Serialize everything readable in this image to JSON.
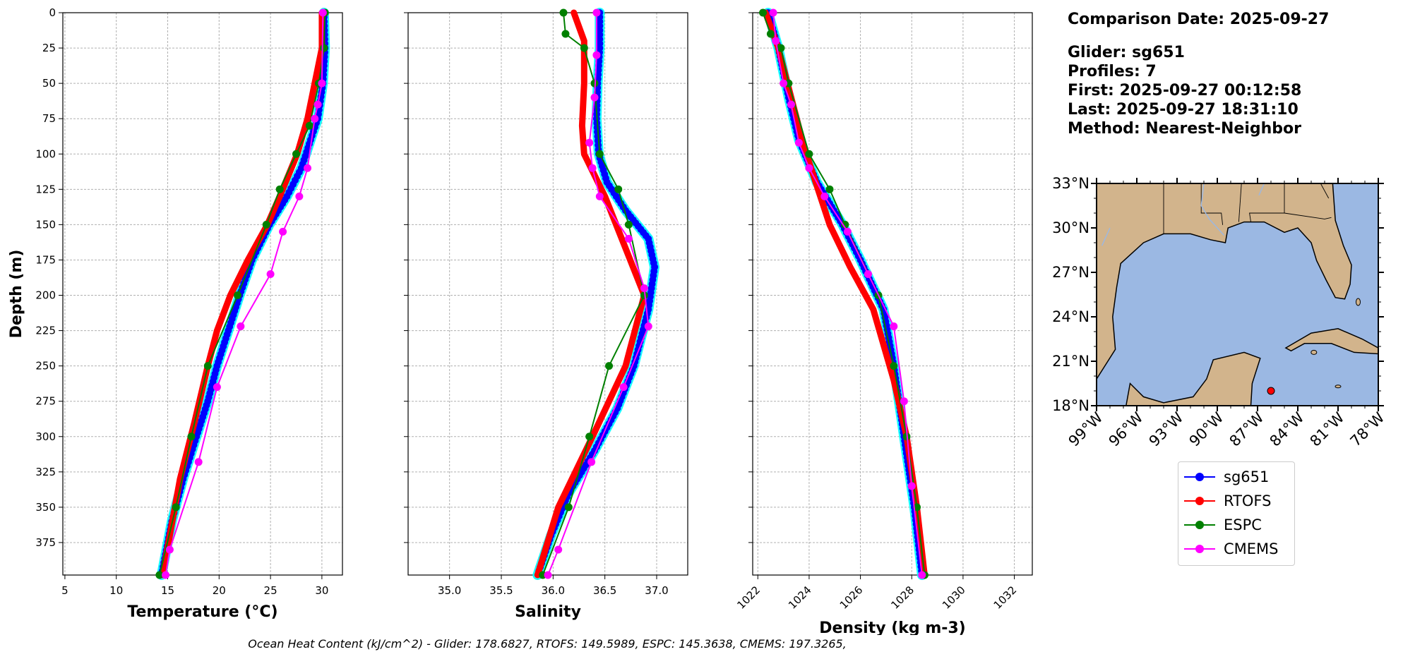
{
  "info": {
    "comparison_date": "Comparison Date: 2025-09-27",
    "glider": "Glider: sg651",
    "profiles": "Profiles: 7",
    "first": "First: 2025-09-27 00:12:58",
    "last": "Last: 2025-09-27 18:31:10",
    "method": "Method: Nearest-Neighbor"
  },
  "footer": "Ocean Heat Content (kJ/cm^2) - Glider: 178.6827,  RTOFS: 149.5989,  ESPC: 145.3638,  CMEMS: 197.3265,",
  "legend": [
    {
      "name": "sg651",
      "color": "#0000ff"
    },
    {
      "name": "RTOFS",
      "color": "#ff0000"
    },
    {
      "name": "ESPC",
      "color": "#008000"
    },
    {
      "name": "CMEMS",
      "color": "#ff00ff"
    }
  ],
  "colors": {
    "glider": "#0000ff",
    "glider_cast": "#00ffff",
    "rtofs": "#ff0000",
    "espc": "#008000",
    "cmems": "#ff00ff",
    "land": "#d2b48c",
    "ocean": "#9bb8e3"
  },
  "chart_data": [
    {
      "type": "line",
      "xlabel": "Temperature (°C)",
      "ylabel": "Depth (m)",
      "xlim": [
        4.8,
        32.0
      ],
      "ylim": [
        398,
        0
      ],
      "xticks": [
        5,
        10,
        15,
        20,
        25,
        30
      ],
      "yticks": [
        0,
        25,
        50,
        75,
        100,
        125,
        150,
        175,
        200,
        225,
        250,
        275,
        300,
        325,
        350,
        375
      ],
      "grid": true,
      "series": [
        {
          "name": "sg651",
          "x": [
            30.2,
            30.3,
            30.1,
            29.6,
            28.9,
            28.0,
            26.6,
            24.9,
            23.2,
            22.0,
            20.9,
            19.8,
            18.9,
            17.8,
            16.5,
            15.4,
            14.4
          ],
          "y": [
            0,
            25,
            50,
            75,
            90,
            110,
            130,
            150,
            175,
            200,
            225,
            250,
            275,
            300,
            330,
            360,
            398
          ]
        },
        {
          "name": "RTOFS",
          "x": [
            30.0,
            30.0,
            29.3,
            28.6,
            27.6,
            25.9,
            24.7,
            22.8,
            21.1,
            19.8,
            18.9,
            17.6,
            16.2,
            14.5
          ],
          "y": [
            0,
            25,
            50,
            75,
            100,
            130,
            150,
            175,
            200,
            225,
            250,
            290,
            330,
            398
          ]
        },
        {
          "name": "ESPC",
          "x": [
            30.3,
            30.2,
            29.7,
            28.8,
            27.5,
            25.9,
            24.6,
            21.8,
            18.9,
            17.3,
            15.8,
            14.2
          ],
          "y": [
            0,
            25,
            50,
            80,
            100,
            125,
            150,
            200,
            250,
            300,
            350,
            398
          ]
        },
        {
          "name": "CMEMS",
          "x": [
            30.1,
            30.0,
            29.6,
            29.3,
            28.6,
            27.8,
            26.2,
            25.0,
            22.1,
            19.8,
            18.0,
            15.2,
            14.8
          ],
          "y": [
            0,
            50,
            65,
            75,
            110,
            130,
            155,
            185,
            222,
            265,
            318,
            380,
            398
          ]
        }
      ]
    },
    {
      "type": "line",
      "xlabel": "Salinity",
      "xlim": [
        34.6,
        37.3
      ],
      "ylim": [
        398,
        0
      ],
      "xticks": [
        35.0,
        35.5,
        36.0,
        36.5,
        37.0
      ],
      "tick_labels": [
        "35.0",
        "35.5",
        "36.0",
        "36.5",
        "37.0"
      ],
      "grid": true,
      "series": [
        {
          "name": "sg651",
          "x": [
            36.45,
            36.45,
            36.43,
            36.42,
            36.44,
            36.52,
            36.7,
            36.92,
            36.98,
            36.92,
            36.78,
            36.62,
            36.4,
            36.15,
            35.98,
            35.85
          ],
          "y": [
            0,
            25,
            50,
            75,
            100,
            120,
            140,
            160,
            180,
            210,
            250,
            280,
            310,
            340,
            370,
            398
          ]
        },
        {
          "name": "RTOFS",
          "x": [
            36.2,
            36.3,
            36.3,
            36.28,
            36.3,
            36.5,
            36.88,
            36.7,
            36.38,
            36.05,
            35.85
          ],
          "y": [
            0,
            20,
            50,
            80,
            100,
            130,
            200,
            250,
            300,
            350,
            398
          ]
        },
        {
          "name": "ESPC",
          "x": [
            36.1,
            36.12,
            36.3,
            36.4,
            36.45,
            36.63,
            36.73,
            36.88,
            36.54,
            36.35,
            36.15,
            35.9
          ],
          "y": [
            0,
            15,
            25,
            50,
            100,
            125,
            150,
            200,
            250,
            300,
            350,
            398
          ]
        },
        {
          "name": "CMEMS",
          "x": [
            36.42,
            36.42,
            36.4,
            36.35,
            36.38,
            36.45,
            36.73,
            36.88,
            36.92,
            36.68,
            36.37,
            36.05,
            35.95
          ],
          "y": [
            0,
            30,
            60,
            92,
            110,
            130,
            160,
            195,
            222,
            265,
            318,
            380,
            398
          ]
        }
      ]
    },
    {
      "type": "line",
      "xlabel": "Density (kg m-3)",
      "xlim": [
        1021.8,
        1032.7
      ],
      "ylim": [
        398,
        0
      ],
      "xticks": [
        1022,
        1024,
        1026,
        1028,
        1030,
        1032
      ],
      "grid": true,
      "series": [
        {
          "name": "sg651",
          "x": [
            1022.4,
            1022.8,
            1023.2,
            1023.6,
            1024.3,
            1025.3,
            1026.0,
            1026.9,
            1027.3,
            1027.7,
            1028.1,
            1028.4
          ],
          "y": [
            0,
            25,
            60,
            90,
            120,
            150,
            175,
            210,
            250,
            300,
            350,
            398
          ]
        },
        {
          "name": "RTOFS",
          "x": [
            1022.3,
            1022.8,
            1023.3,
            1023.8,
            1024.8,
            1025.6,
            1026.5,
            1027.3,
            1027.8,
            1028.2,
            1028.5
          ],
          "y": [
            0,
            25,
            60,
            95,
            150,
            180,
            210,
            260,
            300,
            350,
            398
          ]
        },
        {
          "name": "ESPC",
          "x": [
            1022.2,
            1022.5,
            1022.9,
            1023.2,
            1024.0,
            1024.8,
            1025.4,
            1026.7,
            1027.3,
            1027.8,
            1028.2,
            1028.5
          ],
          "y": [
            0,
            15,
            25,
            50,
            100,
            125,
            150,
            200,
            250,
            300,
            350,
            398
          ]
        },
        {
          "name": "CMEMS",
          "x": [
            1022.6,
            1022.7,
            1023.0,
            1023.3,
            1023.6,
            1024.0,
            1024.6,
            1025.5,
            1026.3,
            1027.3,
            1027.7,
            1028.0,
            1028.4
          ],
          "y": [
            0,
            20,
            50,
            65,
            92,
            110,
            130,
            155,
            185,
            222,
            275,
            335,
            398
          ]
        }
      ]
    }
  ],
  "map": {
    "lat_ticks": [
      "33°N",
      "30°N",
      "27°N",
      "24°N",
      "21°N",
      "18°N"
    ],
    "lon_ticks": [
      "99°W",
      "96°W",
      "93°W",
      "90°W",
      "87°W",
      "84°W",
      "81°W",
      "78°W"
    ],
    "lon_range": [
      -99,
      -78
    ],
    "lat_range": [
      18,
      33
    ],
    "glider_position": {
      "lon": -86.0,
      "lat": 19.0
    }
  }
}
